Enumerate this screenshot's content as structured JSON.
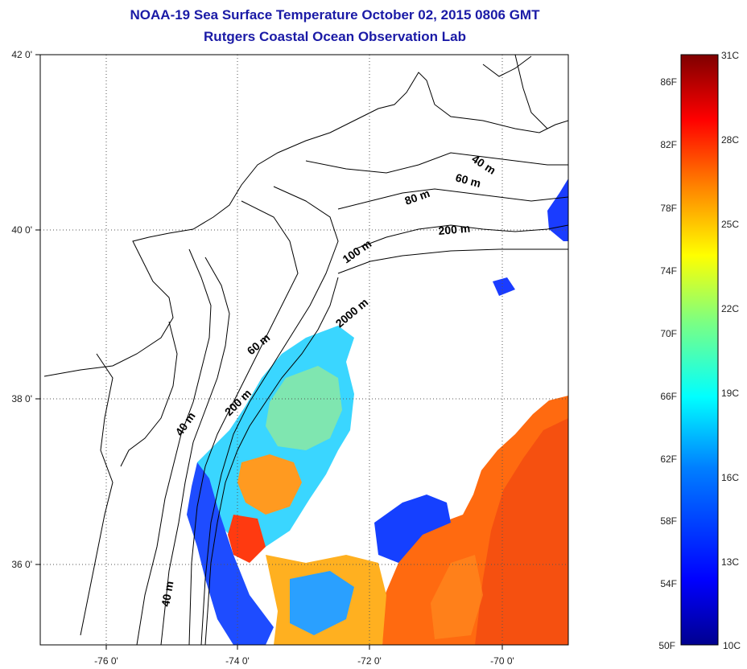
{
  "title": "NOAA-19 Sea Surface Temperature October 02, 2015 0806 GMT",
  "subtitle": "Rutgers Coastal Ocean Observation Lab",
  "latitude_labels": [
    "42 0'",
    "40 0'",
    "38 0'",
    "36 0'"
  ],
  "longitude_labels": [
    "-76 0'",
    "-74 0'",
    "-72 0'",
    "-70 0'"
  ],
  "contour_labels": [
    "40 m",
    "60 m",
    "80 m",
    "200 m",
    "100 m",
    "2000 m",
    "60 m",
    "200 m",
    "40 m",
    "40 m"
  ],
  "colorbar": {
    "fahrenheit": [
      "86F",
      "82F",
      "78F",
      "74F",
      "70F",
      "66F",
      "62F",
      "58F",
      "54F",
      "50F"
    ],
    "celsius": [
      "31C",
      "28C",
      "25C",
      "22C",
      "19C",
      "16C",
      "13C",
      "10C"
    ],
    "range_celsius": [
      10,
      31
    ],
    "colors": [
      "#00008f",
      "#0000ff",
      "#007fff",
      "#00ffff",
      "#7fff7f",
      "#ffff00",
      "#ff7f00",
      "#ff0000",
      "#7f0000"
    ]
  }
}
